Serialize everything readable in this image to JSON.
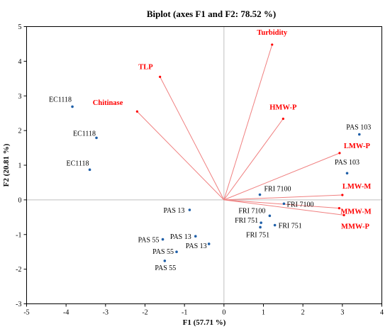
{
  "chart_data": {
    "type": "scatter",
    "title": "Biplot (axes F1 and F2: 78.52 %)",
    "xlabel": "F1 (57.71 %)",
    "ylabel": "F2 (20.81 %)",
    "xlim": [
      -5,
      4
    ],
    "ylim": [
      -3,
      5
    ],
    "x_ticks": [
      "-5",
      "-4",
      "-3",
      "-2",
      "-1",
      "0",
      "1",
      "2",
      "3",
      "4"
    ],
    "y_ticks": [
      "-3",
      "-2",
      "-1",
      "0",
      "1",
      "2",
      "3",
      "4",
      "5"
    ],
    "grid": false,
    "colors": {
      "observations": "#1f5fa8",
      "variables": "#ff0000",
      "vectors": "#f08080",
      "frame": "#000000",
      "zero_lines": "#bfbfbf"
    },
    "observations": [
      {
        "label": "EC1118",
        "x": -3.84,
        "y": 2.69
      },
      {
        "label": "EC1118",
        "x": -3.23,
        "y": 1.79
      },
      {
        "label": "EC1118",
        "x": -3.4,
        "y": 0.87
      },
      {
        "label": "PAS 103",
        "x": 3.43,
        "y": 1.89
      },
      {
        "label": "PAS 103",
        "x": 3.12,
        "y": 0.77
      },
      {
        "label": "FRI 7100",
        "x": 0.91,
        "y": 0.15
      },
      {
        "label": "FRI 7100",
        "x": 1.52,
        "y": -0.11
      },
      {
        "label": "FRI 7100",
        "x": 1.16,
        "y": -0.46
      },
      {
        "label": "FRI 751",
        "x": 0.94,
        "y": -0.66
      },
      {
        "label": "FRI 751",
        "x": 1.29,
        "y": -0.73
      },
      {
        "label": "FRI 751",
        "x": 0.92,
        "y": -0.79
      },
      {
        "label": "PAS 13",
        "x": -0.87,
        "y": -0.29
      },
      {
        "label": "PAS 13",
        "x": -0.72,
        "y": -1.05
      },
      {
        "label": "PAS 13",
        "x": -0.38,
        "y": -1.27
      },
      {
        "label": "PAS 55",
        "x": -1.55,
        "y": -1.14
      },
      {
        "label": "PAS 55",
        "x": -1.2,
        "y": -1.5
      },
      {
        "label": "PAS 55",
        "x": -1.5,
        "y": -1.76
      }
    ],
    "variables": [
      {
        "label": "Turbidity",
        "x": 1.22,
        "y": 4.48
      },
      {
        "label": "TLP",
        "x": -1.62,
        "y": 3.55
      },
      {
        "label": "Chitinase",
        "x": -2.2,
        "y": 2.55
      },
      {
        "label": "HMW-P",
        "x": 1.5,
        "y": 2.34
      },
      {
        "label": "LMW-P",
        "x": 2.93,
        "y": 1.35
      },
      {
        "label": "LMW-M",
        "x": 3.0,
        "y": 0.14
      },
      {
        "label": "MMW-M",
        "x": 2.92,
        "y": -0.24
      },
      {
        "label": "MMW-P",
        "x": 3.04,
        "y": -0.44
      }
    ]
  }
}
